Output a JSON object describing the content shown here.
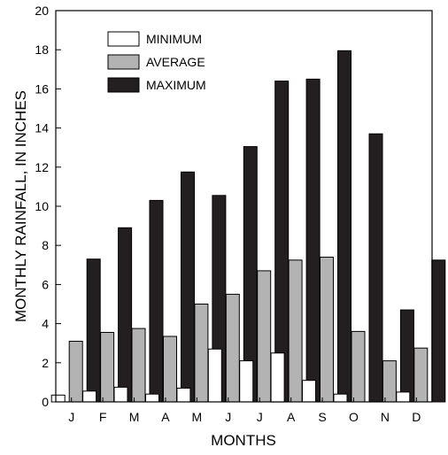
{
  "chart_data": {
    "type": "bar",
    "xlabel": "MONTHS",
    "ylabel": "MONTHLY RAINFALL, IN INCHES",
    "ylim": [
      0,
      20
    ],
    "yticks": [
      0,
      2,
      4,
      6,
      8,
      10,
      12,
      14,
      16,
      18,
      20
    ],
    "grid": false,
    "legend_position": "top-left",
    "categories": [
      "J",
      "F",
      "M",
      "A",
      "M",
      "J",
      "J",
      "A",
      "S",
      "O",
      "N",
      "D"
    ],
    "series": [
      {
        "name": "MINIMUM",
        "color": "#ffffff",
        "values": [
          0.35,
          0.55,
          0.75,
          0.4,
          0.7,
          2.7,
          2.1,
          2.5,
          1.1,
          0.4,
          0.0,
          0.5
        ]
      },
      {
        "name": "AVERAGE",
        "color": "#b3b3b3",
        "values": [
          3.1,
          3.55,
          3.75,
          3.35,
          5.0,
          5.5,
          6.7,
          7.25,
          7.4,
          3.6,
          2.1,
          2.75
        ]
      },
      {
        "name": "MAXIMUM",
        "color": "#231f20",
        "values": [
          7.3,
          8.9,
          10.3,
          11.75,
          10.55,
          13.05,
          16.4,
          16.5,
          17.95,
          13.7,
          4.7,
          7.25
        ]
      }
    ]
  }
}
